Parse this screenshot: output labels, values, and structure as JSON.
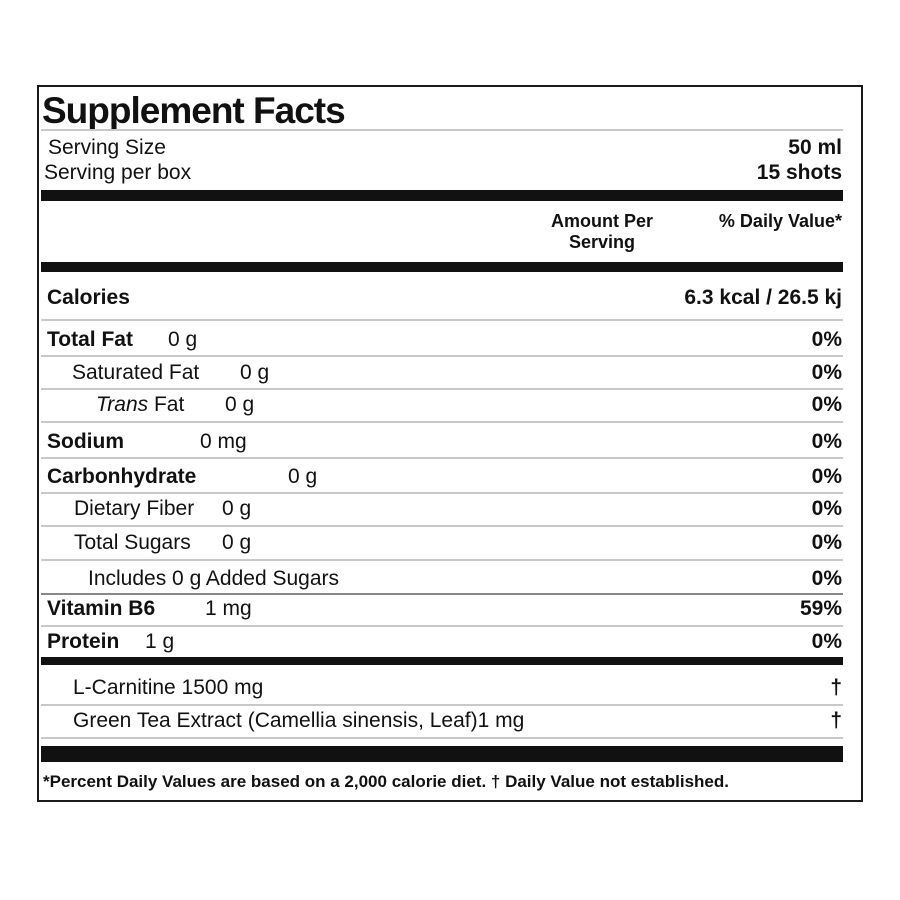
{
  "title": "Supplement Facts",
  "serving": {
    "size_label": "Serving Size",
    "size_value": "50 ml",
    "per_box_label": "Serving per box",
    "per_box_value": "15 shots"
  },
  "header": {
    "amount_line1": "Amount Per",
    "amount_line2": "Serving",
    "daily_value": "% Daily Value*"
  },
  "calories": {
    "label": "Calories",
    "value": "6.3 kcal / 26.5 kj"
  },
  "nutrients": [
    {
      "name": "Total Fat",
      "amount": "0 g",
      "dv": "0%"
    },
    {
      "name": "Saturated Fat",
      "amount": "0 g",
      "dv": "0%"
    },
    {
      "name_italic": "Trans",
      "name": " Fat",
      "amount": "0 g",
      "dv": "0%"
    },
    {
      "name": "Sodium",
      "amount": "0 mg",
      "dv": "0%"
    },
    {
      "name": "Carbonhydrate",
      "amount": "0 g",
      "dv": "0%"
    },
    {
      "name": "Dietary Fiber",
      "amount": "0 g",
      "dv": "0%"
    },
    {
      "name": "Total Sugars",
      "amount": "0 g",
      "dv": "0%"
    },
    {
      "name": "Includes 0 g Added Sugars",
      "dv": "0%"
    },
    {
      "name": "Vitamin B6",
      "amount": "1 mg",
      "dv": "59%"
    },
    {
      "name": "Protein",
      "amount": "1 g",
      "dv": "0%"
    }
  ],
  "other": [
    {
      "name": "L-Carnitine 1500 mg",
      "dv": "†"
    },
    {
      "name": "Green Tea Extract (Camellia sinensis, Leaf)1 mg",
      "dv": "†"
    }
  ],
  "footnote": "*Percent Daily Values are based on a 2,000 calorie diet. † Daily Value not established."
}
